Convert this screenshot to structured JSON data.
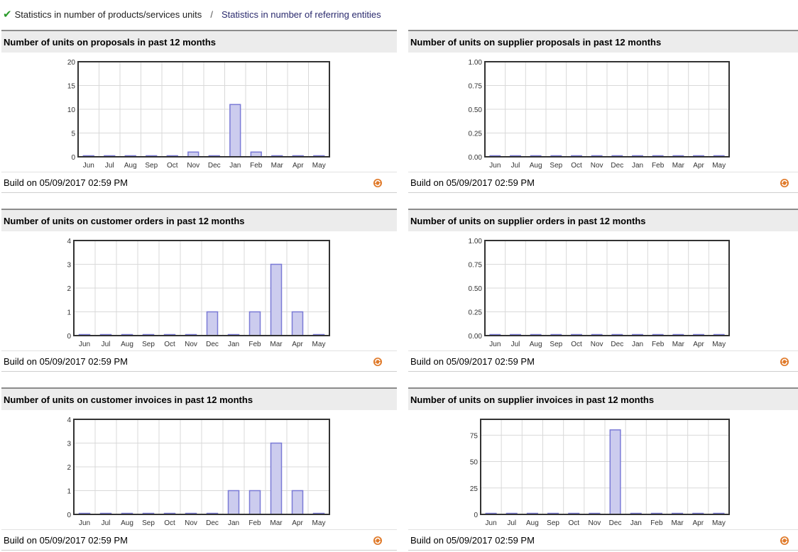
{
  "tabs": {
    "active_label": "Statistics in number of products/services units",
    "separator": "/",
    "link_label": "Statistics in number of referring entities"
  },
  "panels": [
    {
      "title": "Number of units on proposals in past 12 months",
      "footer": "Build on 05/09/2017 02:59 PM",
      "chart_data": {
        "type": "bar",
        "categories": [
          "Jun",
          "Jul",
          "Aug",
          "Sep",
          "Oct",
          "Nov",
          "Dec",
          "Jan",
          "Feb",
          "Mar",
          "Apr",
          "May"
        ],
        "values": [
          0,
          0,
          0,
          0,
          0,
          1,
          0,
          11,
          1,
          0,
          0,
          0
        ],
        "yticks": [
          "0",
          "5",
          "10",
          "15",
          "20"
        ],
        "ylim": [
          0,
          20
        ],
        "title": "",
        "xlabel": "",
        "ylabel": ""
      }
    },
    {
      "title": "Number of units on supplier proposals in past 12 months",
      "footer": "Build on 05/09/2017 02:59 PM",
      "chart_data": {
        "type": "bar",
        "categories": [
          "Jun",
          "Jul",
          "Aug",
          "Sep",
          "Oct",
          "Nov",
          "Dec",
          "Jan",
          "Feb",
          "Mar",
          "Apr",
          "May"
        ],
        "values": [
          0,
          0,
          0,
          0,
          0,
          0,
          0,
          0,
          0,
          0,
          0,
          0
        ],
        "yticks": [
          "0.00",
          "0.25",
          "0.50",
          "0.75",
          "1.00"
        ],
        "ylim": [
          0,
          1
        ],
        "title": "",
        "xlabel": "",
        "ylabel": ""
      }
    },
    {
      "title": "Number of units on customer orders in past 12 months",
      "footer": "Build on 05/09/2017 02:59 PM",
      "chart_data": {
        "type": "bar",
        "categories": [
          "Jun",
          "Jul",
          "Aug",
          "Sep",
          "Oct",
          "Nov",
          "Dec",
          "Jan",
          "Feb",
          "Mar",
          "Apr",
          "May"
        ],
        "values": [
          0,
          0,
          0,
          0,
          0,
          0,
          1,
          0,
          1,
          3,
          1,
          0
        ],
        "yticks": [
          "0",
          "1",
          "2",
          "3",
          "4"
        ],
        "ylim": [
          0,
          4
        ],
        "title": "",
        "xlabel": "",
        "ylabel": ""
      }
    },
    {
      "title": "Number of units on supplier orders in past 12 months",
      "footer": "Build on 05/09/2017 02:59 PM",
      "chart_data": {
        "type": "bar",
        "categories": [
          "Jun",
          "Jul",
          "Aug",
          "Sep",
          "Oct",
          "Nov",
          "Dec",
          "Jan",
          "Feb",
          "Mar",
          "Apr",
          "May"
        ],
        "values": [
          0,
          0,
          0,
          0,
          0,
          0,
          0,
          0,
          0,
          0,
          0,
          0
        ],
        "yticks": [
          "0.00",
          "0.25",
          "0.50",
          "0.75",
          "1.00"
        ],
        "ylim": [
          0,
          1
        ],
        "title": "",
        "xlabel": "",
        "ylabel": ""
      }
    },
    {
      "title": "Number of units on customer invoices in past 12 months",
      "footer": "Build on 05/09/2017 02:59 PM",
      "chart_data": {
        "type": "bar",
        "categories": [
          "Jun",
          "Jul",
          "Aug",
          "Sep",
          "Oct",
          "Nov",
          "Dec",
          "Jan",
          "Feb",
          "Mar",
          "Apr",
          "May"
        ],
        "values": [
          0,
          0,
          0,
          0,
          0,
          0,
          0,
          1,
          1,
          3,
          1,
          0
        ],
        "yticks": [
          "0",
          "1",
          "2",
          "3",
          "4"
        ],
        "ylim": [
          0,
          4
        ],
        "title": "",
        "xlabel": "",
        "ylabel": ""
      }
    },
    {
      "title": "Number of units on supplier invoices in past 12 months",
      "footer": "Build on 05/09/2017 02:59 PM",
      "chart_data": {
        "type": "bar",
        "categories": [
          "Jun",
          "Jul",
          "Aug",
          "Sep",
          "Oct",
          "Nov",
          "Dec",
          "Jan",
          "Feb",
          "Mar",
          "Apr",
          "May"
        ],
        "values": [
          0,
          0,
          0,
          0,
          0,
          0,
          80,
          0,
          0,
          0,
          0,
          0
        ],
        "yticks": [
          "0",
          "25",
          "50",
          "75"
        ],
        "ylim": [
          0,
          90
        ],
        "title": "",
        "xlabel": "",
        "ylabel": ""
      }
    }
  ],
  "colors": {
    "bar_fill": "#ccccee",
    "bar_stroke": "#7a7ad6",
    "grid": "#d9d9d9",
    "plot_border": "#333333",
    "check": "#2a9a2a",
    "refresh": "#e07a2a"
  },
  "icons": {
    "status": "check-icon",
    "refresh": "refresh-icon"
  }
}
